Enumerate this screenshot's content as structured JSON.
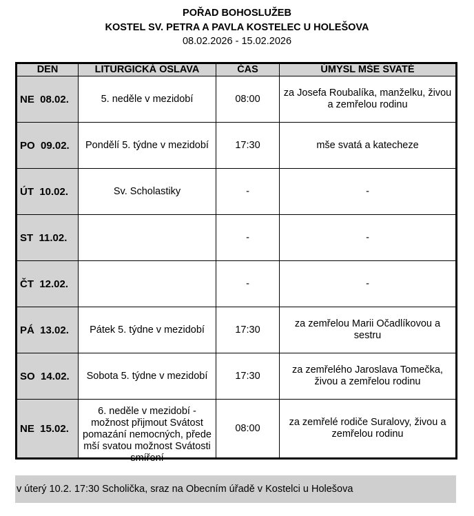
{
  "header": {
    "title": "POŘAD BOHOSLUŽEB",
    "church": "KOSTEL SV. PETRA A PAVLA KOSTELEC U HOLEŠOVA",
    "range": "08.02.2026 - 15.02.2026"
  },
  "columns": [
    "DEN",
    "LITURGICKÁ OSLAVA",
    "ČAS",
    "ÚMYSL MŠE SVATÉ"
  ],
  "rows": [
    {
      "day": "NE  08.02.",
      "celebration": "5. neděle v mezidobí",
      "time": "08:00",
      "intention": "za Josefa Roubalíka, manželku, živou a zemřelou rodinu"
    },
    {
      "day": "PO  09.02.",
      "celebration": "Pondělí 5. týdne v mezidobí",
      "time": "17:30",
      "intention": "mše svatá a katecheze"
    },
    {
      "day": "ÚT  10.02.",
      "celebration": "Sv. Scholastiky",
      "time": "-",
      "intention": "-"
    },
    {
      "day": "ST  11.02.",
      "celebration": "",
      "time": "-",
      "intention": "-"
    },
    {
      "day": "ČT  12.02.",
      "celebration": "",
      "time": "-",
      "intention": "-"
    },
    {
      "day": "PÁ  13.02.",
      "celebration": "Pátek 5. týdne v mezidobí",
      "time": "17:30",
      "intention": "za zemřelou Marii Očadlíkovou a sestru"
    },
    {
      "day": "SO  14.02.",
      "celebration": "Sobota 5. týdne v mezidobí",
      "time": "17:30",
      "intention": "za zemřelého Jaroslava Tomečka, živou a zemřelou rodinu"
    },
    {
      "day": "NE  15.02.",
      "celebration": "6. neděle v mezidobí - možnost přijmout Svátost pomazání nemocných, přede mší svatou možnost Svátosti smíření",
      "time": "08:00",
      "intention": "za zemřelé rodiče Suralovy, živou a zemřelou rodinu"
    }
  ],
  "note": "v úterý 10.2. 17:30 Scholička, sraz na Obecním úřadě v Kostelci u Holešova"
}
